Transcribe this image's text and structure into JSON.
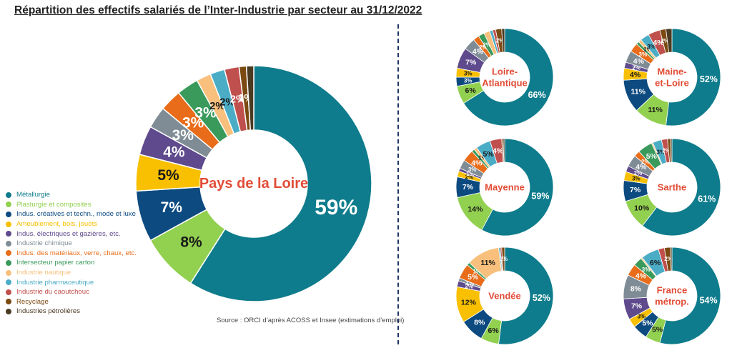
{
  "title": "Répartition des effectifs salariés de l’Inter-Industrie par secteur au 31/12/2022",
  "source": "Source : ORCI d’après ACOSS et Insee (estimations d’emploi)",
  "chart_data": [
    {
      "type": "pie",
      "variant": "donut",
      "center_label": [
        "Pays de la Loire"
      ],
      "legend_position": "left",
      "categories": [
        "Métallurgie",
        "Plasturgie et composites",
        "Indus. créatives et techn., mode et luxe",
        "Ameublement, bois, jouets",
        "Indus. électriques et gazières, etc.",
        "Industrie chimique",
        "Indus. des matériaux, verre, chaux, etc.",
        "Intersecteur papier carton",
        "Industrie nautique",
        "Industrie pharmaceutique",
        "Industrie du caoutchouc",
        "Recyclage",
        "Industries pétrolières"
      ],
      "colors": [
        "#0e7c8c",
        "#92d050",
        "#0c4a80",
        "#f8c000",
        "#5e4a8c",
        "#7f8c95",
        "#e86c19",
        "#3a9a5c",
        "#f8c07c",
        "#4bacc6",
        "#c0504d",
        "#7b4a12",
        "#4a3a22"
      ],
      "values": [
        59,
        8,
        7,
        5,
        4,
        3,
        3,
        3,
        2,
        2,
        2,
        1,
        1
      ],
      "labels": [
        "59%",
        "8%",
        "7%",
        "5%",
        "4%",
        "3%",
        "3%",
        "3%",
        "2%",
        "2%",
        "2%",
        "1%",
        ""
      ]
    },
    {
      "type": "pie",
      "variant": "donut",
      "center_label": [
        "Loire-",
        "Atlantique"
      ],
      "values": [
        66,
        6,
        3,
        3,
        7,
        4,
        2,
        2,
        2,
        1,
        1,
        2,
        1
      ],
      "labels": [
        "66%",
        "6%",
        "3%",
        "3%",
        "7%",
        "4%",
        "2%",
        "2%",
        "",
        "",
        "",
        "2%",
        ""
      ]
    },
    {
      "type": "pie",
      "variant": "donut",
      "center_label": [
        "Maine-",
        "et-Loire"
      ],
      "values": [
        52,
        11,
        11,
        4,
        2,
        4,
        3,
        1,
        1,
        3,
        4,
        2,
        2
      ],
      "labels": [
        "52%",
        "11%",
        "11%",
        "4%",
        "2%",
        "4%",
        "3%",
        "",
        "1%",
        "3%",
        "4%",
        "2%",
        ""
      ]
    },
    {
      "type": "pie",
      "variant": "donut",
      "center_label": [
        "Mayenne"
      ],
      "values": [
        59,
        14,
        7,
        2,
        1,
        3,
        4,
        1,
        1,
        5,
        4,
        0.5,
        0.5
      ],
      "labels": [
        "59%",
        "14%",
        "7%",
        "2%",
        "1%",
        "3%",
        "4%",
        "",
        "1%",
        "5%",
        "4%",
        "",
        ""
      ]
    },
    {
      "type": "pie",
      "variant": "donut",
      "center_label": [
        "Sarthe"
      ],
      "values": [
        61,
        10,
        7,
        3,
        2,
        4,
        2,
        5,
        0.5,
        3,
        2,
        1,
        0.5
      ],
      "labels": [
        "61%",
        "10%",
        "7%",
        "3%",
        "2%",
        "4%",
        "2%",
        "5%",
        "",
        "3%",
        "2%",
        "",
        ""
      ]
    },
    {
      "type": "pie",
      "variant": "donut",
      "center_label": [
        "Vendée"
      ],
      "values": [
        52,
        6,
        8,
        12,
        2,
        1,
        5,
        1,
        11,
        0.5,
        0.5,
        1,
        0
      ],
      "labels": [
        "52%",
        "6%",
        "8%",
        "12%",
        "2%",
        "1%",
        "5%",
        "1%",
        "11%",
        "",
        "",
        "1%",
        ""
      ]
    },
    {
      "type": "pie",
      "variant": "donut",
      "center_label": [
        "France",
        "métrop."
      ],
      "values": [
        54,
        5,
        5,
        3,
        7,
        8,
        4,
        3,
        0.5,
        6,
        2,
        2,
        0.5
      ],
      "labels": [
        "54%",
        "5%",
        "5%",
        "3%",
        "7%",
        "8%",
        "4%",
        "3%",
        "",
        "6%",
        "",
        "2%",
        ""
      ]
    }
  ]
}
